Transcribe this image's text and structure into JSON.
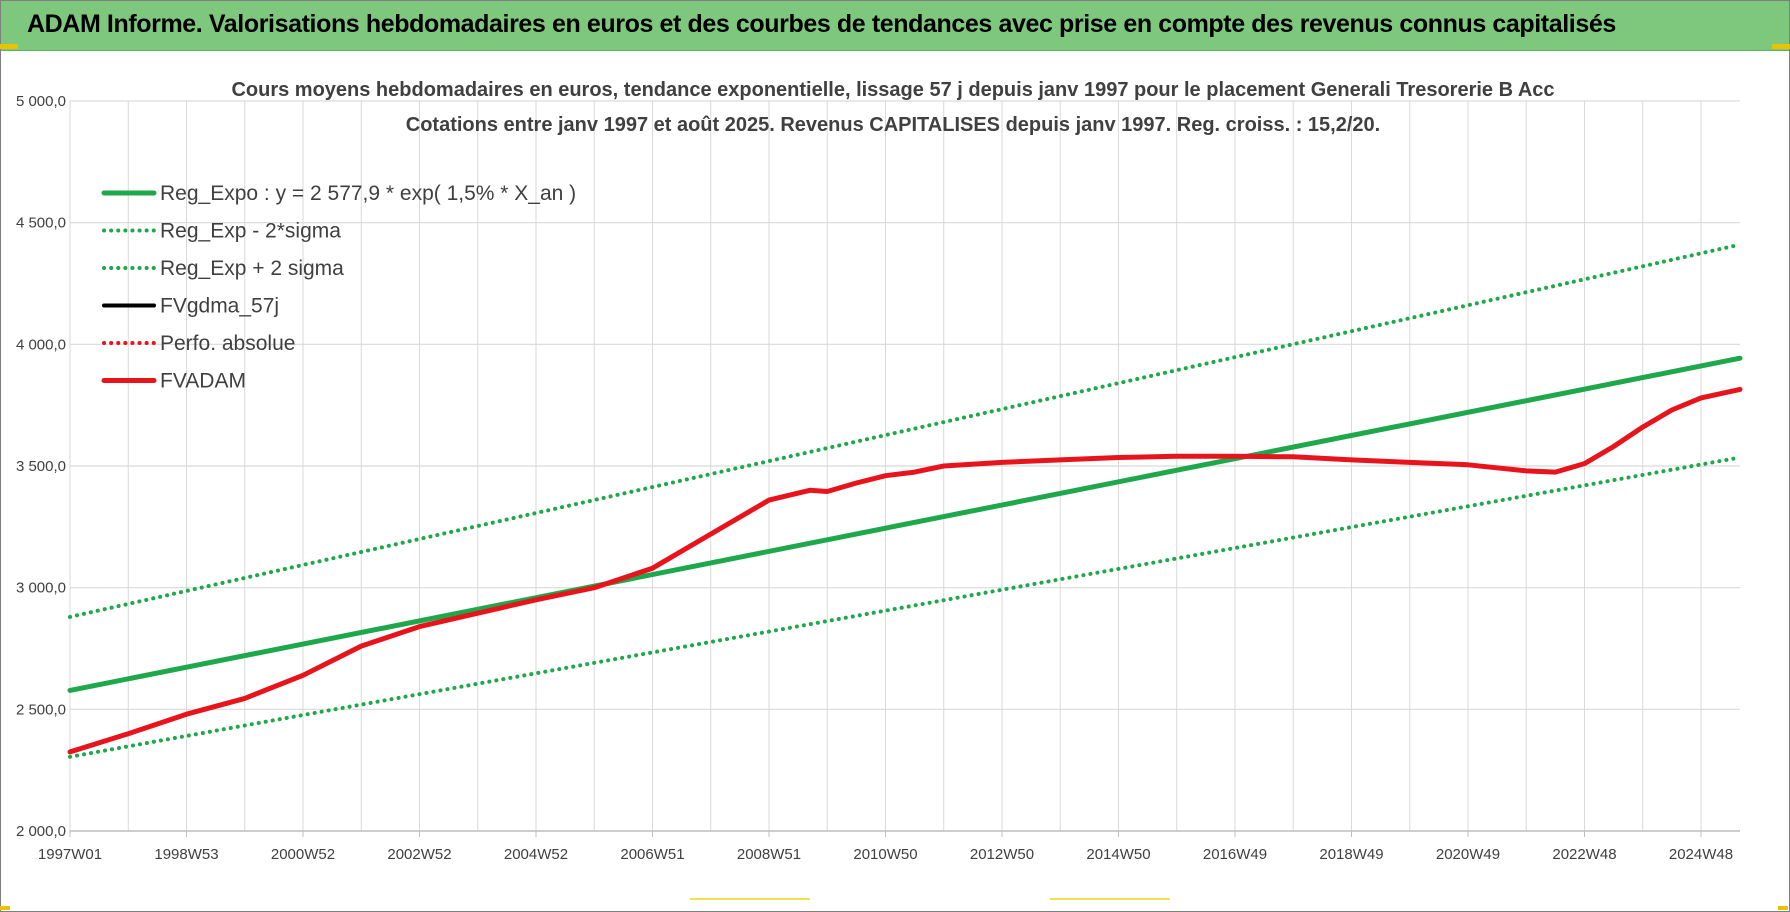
{
  "banner": {
    "title": "ADAM Informe. Valorisations hebdomadaires en euros et des courbes de tendances avec prise en compte des revenus connus capitalisés"
  },
  "colors": {
    "banner_bg": "#7ec87e",
    "reg_green": "#1fa84b",
    "fvadam_red": "#e8141c",
    "black": "#000000",
    "grid": "#d9d9d9"
  },
  "chart_data": {
    "type": "line",
    "title": "Cours moyens hebdomadaires en euros, tendance exponentielle, lissage 57 j depuis janv 1997  pour le placement Generali Tresorerie B Acc",
    "subtitle": "Cotations entre janv 1997 et août 2025.  Revenus CAPITALISES  depuis janv 1997. Reg.  croiss. : 15,2/20.",
    "xlabel": "",
    "ylabel": "",
    "ylim": [
      2000,
      5000
    ],
    "xlim": [
      1997.0,
      2025.67
    ],
    "grid": true,
    "legend_position": "top-left",
    "yticks": [
      "2 000,0",
      "2 500,0",
      "3 000,0",
      "3 500,0",
      "4 000,0",
      "4 500,0",
      "5 000,0"
    ],
    "yticks_values": [
      2000,
      2500,
      3000,
      3500,
      4000,
      4500,
      5000
    ],
    "xticks": [
      "1997W01",
      "1998W53",
      "2000W52",
      "2002W52",
      "2004W52",
      "2006W51",
      "2008W51",
      "2010W50",
      "2012W50",
      "2014W50",
      "2016W49",
      "2018W49",
      "2020W49",
      "2022W48",
      "2024W48"
    ],
    "xticks_values": [
      1997.0,
      1999.0,
      2001.0,
      2003.0,
      2005.0,
      2007.0,
      2009.0,
      2011.0,
      2013.0,
      2015.0,
      2017.0,
      2019.0,
      2021.0,
      2023.0,
      2025.0
    ],
    "series": [
      {
        "name": "Reg_Expo : y = 2 577,9 * exp( 1,5% *  X_an )",
        "style": "solid",
        "color": "#1fa84b",
        "x": [
          1997.0,
          2025.67
        ],
        "y": [
          2578,
          3943
        ]
      },
      {
        "name": "Reg_Exp - 2*sigma",
        "style": "dotted",
        "color": "#1fa84b",
        "x": [
          1997.0,
          2025.67
        ],
        "y": [
          2305,
          3535
        ]
      },
      {
        "name": "Reg_Exp + 2 sigma",
        "style": "dotted",
        "color": "#1fa84b",
        "x": [
          1997.0,
          2025.67
        ],
        "y": [
          2880,
          4410
        ]
      },
      {
        "name": "FVgdma_57j",
        "style": "solid",
        "color": "#000000",
        "x": [],
        "y": []
      },
      {
        "name": "Perfo. absolue",
        "style": "dotted",
        "color": "#e8141c",
        "x": [],
        "y": []
      },
      {
        "name": "FVADAM",
        "style": "solid",
        "color": "#e8141c",
        "x": [
          1997.0,
          1998.0,
          1999.0,
          2000.0,
          2001.0,
          2002.0,
          2003.0,
          2004.0,
          2005.0,
          2006.0,
          2007.0,
          2008.0,
          2009.0,
          2009.7,
          2010.0,
          2010.5,
          2011.0,
          2011.5,
          2012.0,
          2013.0,
          2014.0,
          2015.0,
          2016.0,
          2017.0,
          2018.0,
          2019.0,
          2020.0,
          2021.0,
          2022.0,
          2022.5,
          2023.0,
          2023.5,
          2024.0,
          2024.5,
          2025.0,
          2025.67
        ],
        "y": [
          2325,
          2400,
          2480,
          2545,
          2640,
          2760,
          2840,
          2895,
          2950,
          3000,
          3080,
          3220,
          3360,
          3400,
          3395,
          3430,
          3460,
          3475,
          3500,
          3515,
          3525,
          3535,
          3540,
          3540,
          3538,
          3525,
          3515,
          3505,
          3480,
          3475,
          3510,
          3580,
          3660,
          3730,
          3780,
          3815
        ]
      }
    ]
  }
}
